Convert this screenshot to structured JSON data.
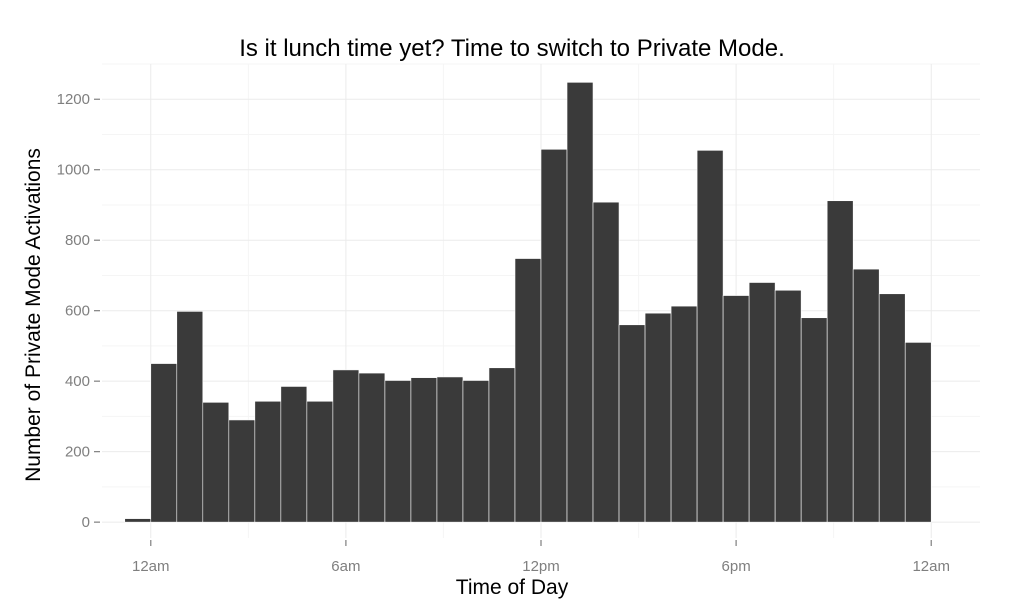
{
  "colors": {
    "bar": "#3a3a3a"
  },
  "chart_data": {
    "type": "bar",
    "title": "Is it lunch time yet? Time to switch to Private Mode.",
    "xlabel": "Time of Day",
    "ylabel": "Number of Private Mode Activations",
    "xlim": [
      -1.5,
      25.5
    ],
    "ylim": [
      -45,
      1300
    ],
    "x_ticks": [
      {
        "value": 0,
        "label": "12am"
      },
      {
        "value": 6,
        "label": "6am"
      },
      {
        "value": 12,
        "label": "12pm"
      },
      {
        "value": 18,
        "label": "6pm"
      },
      {
        "value": 24,
        "label": "12am"
      }
    ],
    "y_ticks": [
      0,
      200,
      400,
      600,
      800,
      1000,
      1200
    ],
    "bin_width": 0.8,
    "bins": [
      {
        "start": -0.8,
        "value": 10
      },
      {
        "start": 0.0,
        "value": 450
      },
      {
        "start": 0.8,
        "value": 598
      },
      {
        "start": 1.6,
        "value": 340
      },
      {
        "start": 2.4,
        "value": 290
      },
      {
        "start": 3.2,
        "value": 343
      },
      {
        "start": 4.0,
        "value": 385
      },
      {
        "start": 4.8,
        "value": 343
      },
      {
        "start": 5.6,
        "value": 432
      },
      {
        "start": 6.4,
        "value": 423
      },
      {
        "start": 7.2,
        "value": 402
      },
      {
        "start": 8.0,
        "value": 410
      },
      {
        "start": 8.8,
        "value": 412
      },
      {
        "start": 9.6,
        "value": 402
      },
      {
        "start": 10.4,
        "value": 438
      },
      {
        "start": 11.2,
        "value": 748
      },
      {
        "start": 12.0,
        "value": 1058
      },
      {
        "start": 12.8,
        "value": 1248
      },
      {
        "start": 13.6,
        "value": 908
      },
      {
        "start": 14.4,
        "value": 560
      },
      {
        "start": 15.2,
        "value": 593
      },
      {
        "start": 16.0,
        "value": 613
      },
      {
        "start": 16.8,
        "value": 1055
      },
      {
        "start": 17.6,
        "value": 643
      },
      {
        "start": 18.4,
        "value": 680
      },
      {
        "start": 19.2,
        "value": 658
      },
      {
        "start": 20.0,
        "value": 580
      },
      {
        "start": 20.8,
        "value": 912
      },
      {
        "start": 21.6,
        "value": 718
      },
      {
        "start": 22.4,
        "value": 648
      },
      {
        "start": 23.2,
        "value": 510
      }
    ],
    "grid": true,
    "legend": "none"
  }
}
